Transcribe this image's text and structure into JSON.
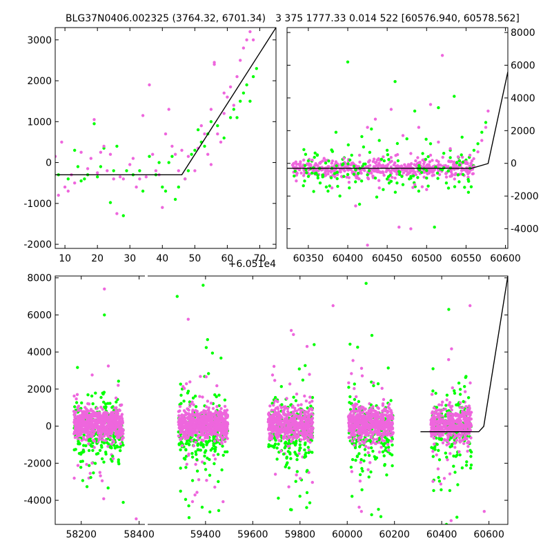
{
  "titles": {
    "left": "BLG37N0406.002325 (3764.32, 6701.34)",
    "right": "3 375 1777.33 0.014 522 [60576.940, 60578.562]"
  },
  "offset_label": "+6.051e4",
  "colors": {
    "green": "#00ff00",
    "magenta": "#ee66dd",
    "line": "#000000"
  },
  "chart_data": [
    {
      "type": "scatter",
      "panel": "top-left",
      "title": "BLG37N0406.002325 (3764.32, 6701.34)",
      "x_offset_label": "+6.051e4",
      "xlim": [
        7,
        75
      ],
      "ylim": [
        -2100,
        3300
      ],
      "xticks": [
        10,
        20,
        30,
        40,
        50,
        60,
        70
      ],
      "yticks": [
        -2000,
        -1000,
        0,
        1000,
        2000,
        3000
      ],
      "yticks_side": "left",
      "series": [
        {
          "color": "green",
          "points": [
            [
              8,
              -300
            ],
            [
              11,
              -400
            ],
            [
              13,
              300
            ],
            [
              14,
              -100
            ],
            [
              15,
              -450
            ],
            [
              16,
              -400
            ],
            [
              17,
              -300
            ],
            [
              19,
              950
            ],
            [
              20,
              -350
            ],
            [
              21,
              -100
            ],
            [
              22,
              350
            ],
            [
              24,
              -980
            ],
            [
              25,
              -200
            ],
            [
              26,
              400
            ],
            [
              28,
              -1300
            ],
            [
              29,
              -200
            ],
            [
              31,
              -300
            ],
            [
              33,
              -200
            ],
            [
              34,
              -700
            ],
            [
              36,
              150
            ],
            [
              38,
              -300
            ],
            [
              39,
              0
            ],
            [
              40,
              -600
            ],
            [
              41,
              -700
            ],
            [
              42,
              0
            ],
            [
              43,
              150
            ],
            [
              44,
              -900
            ],
            [
              45,
              -600
            ],
            [
              47,
              -400
            ],
            [
              48,
              -200
            ],
            [
              49,
              200
            ],
            [
              50,
              300
            ],
            [
              51,
              800
            ],
            [
              52,
              500
            ],
            [
              53,
              400
            ],
            [
              54,
              700
            ],
            [
              55,
              1000
            ],
            [
              57,
              900
            ],
            [
              59,
              600
            ],
            [
              61,
              1100
            ],
            [
              62,
              1300
            ],
            [
              63,
              1100
            ],
            [
              64,
              1500
            ],
            [
              65,
              1700
            ],
            [
              66,
              1900
            ],
            [
              67,
              1500
            ],
            [
              68,
              2100
            ],
            [
              69,
              2300
            ]
          ]
        },
        {
          "color": "magenta",
          "points": [
            [
              7,
              150
            ],
            [
              8,
              -800
            ],
            [
              9,
              500
            ],
            [
              10,
              -600
            ],
            [
              11,
              -700
            ],
            [
              12,
              -300
            ],
            [
              13,
              -500
            ],
            [
              15,
              250
            ],
            [
              17,
              -150
            ],
            [
              18,
              100
            ],
            [
              19,
              1050
            ],
            [
              20,
              -250
            ],
            [
              21,
              250
            ],
            [
              22,
              400
            ],
            [
              23,
              -200
            ],
            [
              24,
              200
            ],
            [
              25,
              -400
            ],
            [
              26,
              -1250
            ],
            [
              27,
              -350
            ],
            [
              28,
              -400
            ],
            [
              30,
              -50
            ],
            [
              31,
              100
            ],
            [
              32,
              -600
            ],
            [
              33,
              -400
            ],
            [
              34,
              1150
            ],
            [
              35,
              -350
            ],
            [
              36,
              1900
            ],
            [
              37,
              200
            ],
            [
              38,
              -200
            ],
            [
              39,
              -300
            ],
            [
              40,
              -1100
            ],
            [
              41,
              700
            ],
            [
              42,
              1300
            ],
            [
              43,
              400
            ],
            [
              44,
              200
            ],
            [
              45,
              -200
            ],
            [
              46,
              300
            ],
            [
              47,
              -400
            ],
            [
              48,
              150
            ],
            [
              50,
              -200
            ],
            [
              51,
              350
            ],
            [
              52,
              900
            ],
            [
              53,
              700
            ],
            [
              54,
              200
            ],
            [
              55,
              1300
            ],
            [
              56,
              2450
            ],
            [
              56,
              2400
            ],
            [
              57,
              700
            ],
            [
              58,
              500
            ],
            [
              59,
              1200
            ],
            [
              60,
              1600
            ],
            [
              61,
              1850
            ],
            [
              62,
              1400
            ],
            [
              63,
              2100
            ],
            [
              64,
              2500
            ],
            [
              65,
              2800
            ],
            [
              66,
              3000
            ],
            [
              67,
              3200
            ],
            [
              68,
              3000
            ],
            [
              55,
              -50
            ],
            [
              59,
              1700
            ]
          ]
        }
      ],
      "model_line": [
        [
          7,
          -300
        ],
        [
          46,
          -300
        ],
        [
          75,
          3300
        ]
      ]
    },
    {
      "type": "scatter",
      "panel": "top-right",
      "xlim": [
        60323,
        60603
      ],
      "ylim": [
        -5200,
        8300
      ],
      "xticks": [
        60350,
        60400,
        60450,
        60500,
        60550,
        60600
      ],
      "yticks": [
        -4000,
        -2000,
        0,
        2000,
        4000,
        6000,
        8000
      ],
      "yticks_side": "right",
      "series": [
        {
          "color": "green",
          "points": [
            [
              60350,
              -800
            ],
            [
              60360,
              -600
            ],
            [
              60365,
              -1200
            ],
            [
              60375,
              -1700
            ],
            [
              60380,
              -300
            ],
            [
              60385,
              1900
            ],
            [
              60390,
              -2000
            ],
            [
              60395,
              -800
            ],
            [
              60400,
              6200
            ],
            [
              60402,
              -1500
            ],
            [
              60405,
              500
            ],
            [
              60410,
              -400
            ],
            [
              60415,
              -2500
            ],
            [
              60420,
              1000
            ],
            [
              60425,
              -700
            ],
            [
              60430,
              2100
            ],
            [
              60435,
              -900
            ],
            [
              60440,
              1400
            ],
            [
              60445,
              -1600
            ],
            [
              60450,
              800
            ],
            [
              60455,
              -1100
            ],
            [
              60460,
              5000
            ],
            [
              60465,
              -500
            ],
            [
              60470,
              -1300
            ],
            [
              60475,
              1500
            ],
            [
              60480,
              -800
            ],
            [
              60485,
              3200
            ],
            [
              60490,
              -1700
            ],
            [
              60495,
              600
            ],
            [
              60500,
              -900
            ],
            [
              60505,
              1200
            ],
            [
              60510,
              -3900
            ],
            [
              60515,
              3400
            ],
            [
              60520,
              -400
            ],
            [
              60525,
              -1200
            ],
            [
              60530,
              800
            ],
            [
              60535,
              4100
            ],
            [
              60540,
              -700
            ],
            [
              60545,
              1600
            ],
            [
              60550,
              200
            ],
            [
              60555,
              -300
            ],
            [
              60560,
              800
            ],
            [
              60565,
              1200
            ],
            [
              60570,
              1900
            ],
            [
              60575,
              2500
            ]
          ]
        },
        {
          "color": "magenta",
          "points": [
            [
              60330,
              -100
            ],
            [
              60340,
              100
            ],
            [
              60350,
              -300
            ],
            [
              60355,
              200
            ],
            [
              60360,
              -400
            ],
            [
              60365,
              0
            ],
            [
              60370,
              300
            ],
            [
              60375,
              -200
            ],
            [
              60380,
              -1500
            ],
            [
              60385,
              100
            ],
            [
              60390,
              -500
            ],
            [
              60395,
              300
            ],
            [
              60400,
              -400
            ],
            [
              60405,
              0
            ],
            [
              60410,
              -2600
            ],
            [
              60415,
              500
            ],
            [
              60420,
              -300
            ],
            [
              60425,
              2200
            ],
            [
              60430,
              -600
            ],
            [
              60435,
              2700
            ],
            [
              60440,
              -1500
            ],
            [
              60445,
              400
            ],
            [
              60450,
              -200
            ],
            [
              60455,
              3300
            ],
            [
              60460,
              -900
            ],
            [
              60465,
              -3900
            ],
            [
              60470,
              1700
            ],
            [
              60475,
              -700
            ],
            [
              60480,
              600
            ],
            [
              60485,
              -1300
            ],
            [
              60490,
              2200
            ],
            [
              60495,
              200
            ],
            [
              60500,
              -1600
            ],
            [
              60505,
              500
            ],
            [
              60510,
              -400
            ],
            [
              60515,
              1300
            ],
            [
              60520,
              6600
            ],
            [
              60525,
              -600
            ],
            [
              60530,
              900
            ],
            [
              60535,
              -200
            ],
            [
              60540,
              400
            ],
            [
              60545,
              -300
            ],
            [
              60550,
              100
            ],
            [
              60555,
              500
            ],
            [
              60560,
              -200
            ],
            [
              60565,
              700
            ],
            [
              60570,
              1400
            ],
            [
              60575,
              2200
            ],
            [
              60578,
              3200
            ],
            [
              60425,
              -5000
            ],
            [
              60480,
              -4000
            ],
            [
              60505,
              3600
            ]
          ]
        }
      ],
      "model_line": [
        [
          60323,
          -300
        ],
        [
          60557,
          -300
        ],
        [
          60578,
          -10
        ],
        [
          60603,
          5600
        ]
      ]
    },
    {
      "type": "scatter",
      "panel": "bottom",
      "segments": [
        {
          "xlim": [
            58110,
            58420
          ],
          "xticks": [
            58200,
            58400
          ]
        },
        {
          "xlim": [
            59155,
            60680
          ],
          "xticks": [
            59400,
            59600,
            59800,
            60000,
            60200,
            60400,
            60600
          ]
        }
      ],
      "ylim": [
        -5300,
        8100
      ],
      "yticks": [
        -4000,
        -2000,
        0,
        2000,
        4000,
        6000,
        8000
      ],
      "yticks_side": "left",
      "clusters": [
        {
          "segment": 0,
          "center": 58260,
          "width": 90,
          "core_points": 600,
          "outliers": 60,
          "mag_spread": 400,
          "green_spread": 1800
        },
        {
          "segment": 1,
          "center": 59390,
          "width": 110,
          "core_points": 600,
          "outliers": 70,
          "mag_spread": 400,
          "green_spread": 2000
        },
        {
          "segment": 1,
          "center": 59760,
          "width": 100,
          "core_points": 500,
          "outliers": 60,
          "mag_spread": 450,
          "green_spread": 2000
        },
        {
          "segment": 1,
          "center": 60100,
          "width": 100,
          "core_points": 500,
          "outliers": 60,
          "mag_spread": 450,
          "green_spread": 2000
        },
        {
          "segment": 1,
          "center": 60440,
          "width": 90,
          "core_points": 400,
          "outliers": 50,
          "mag_spread": 450,
          "green_spread": 2000
        }
      ],
      "highlights": [
        {
          "color": "magenta",
          "points": [
            [
              58280,
              7400
            ],
            [
              59940,
              6500
            ],
            [
              60580,
              -4600
            ],
            [
              60060,
              -4600
            ],
            [
              60440,
              -5100
            ],
            [
              59830,
              4300
            ],
            [
              60520,
              6500
            ],
            [
              58390,
              -5000
            ]
          ]
        },
        {
          "color": "green",
          "points": [
            [
              58280,
              6000
            ],
            [
              59390,
              7600
            ],
            [
              59280,
              7000
            ],
            [
              60080,
              7700
            ],
            [
              60430,
              6300
            ],
            [
              59860,
              4400
            ],
            [
              59760,
              -4500
            ],
            [
              60420,
              -5300
            ]
          ]
        }
      ],
      "model_line": [
        [
          60310,
          -300
        ],
        [
          60557,
          -300
        ],
        [
          60578,
          -10
        ],
        [
          60680,
          8100
        ]
      ]
    }
  ]
}
